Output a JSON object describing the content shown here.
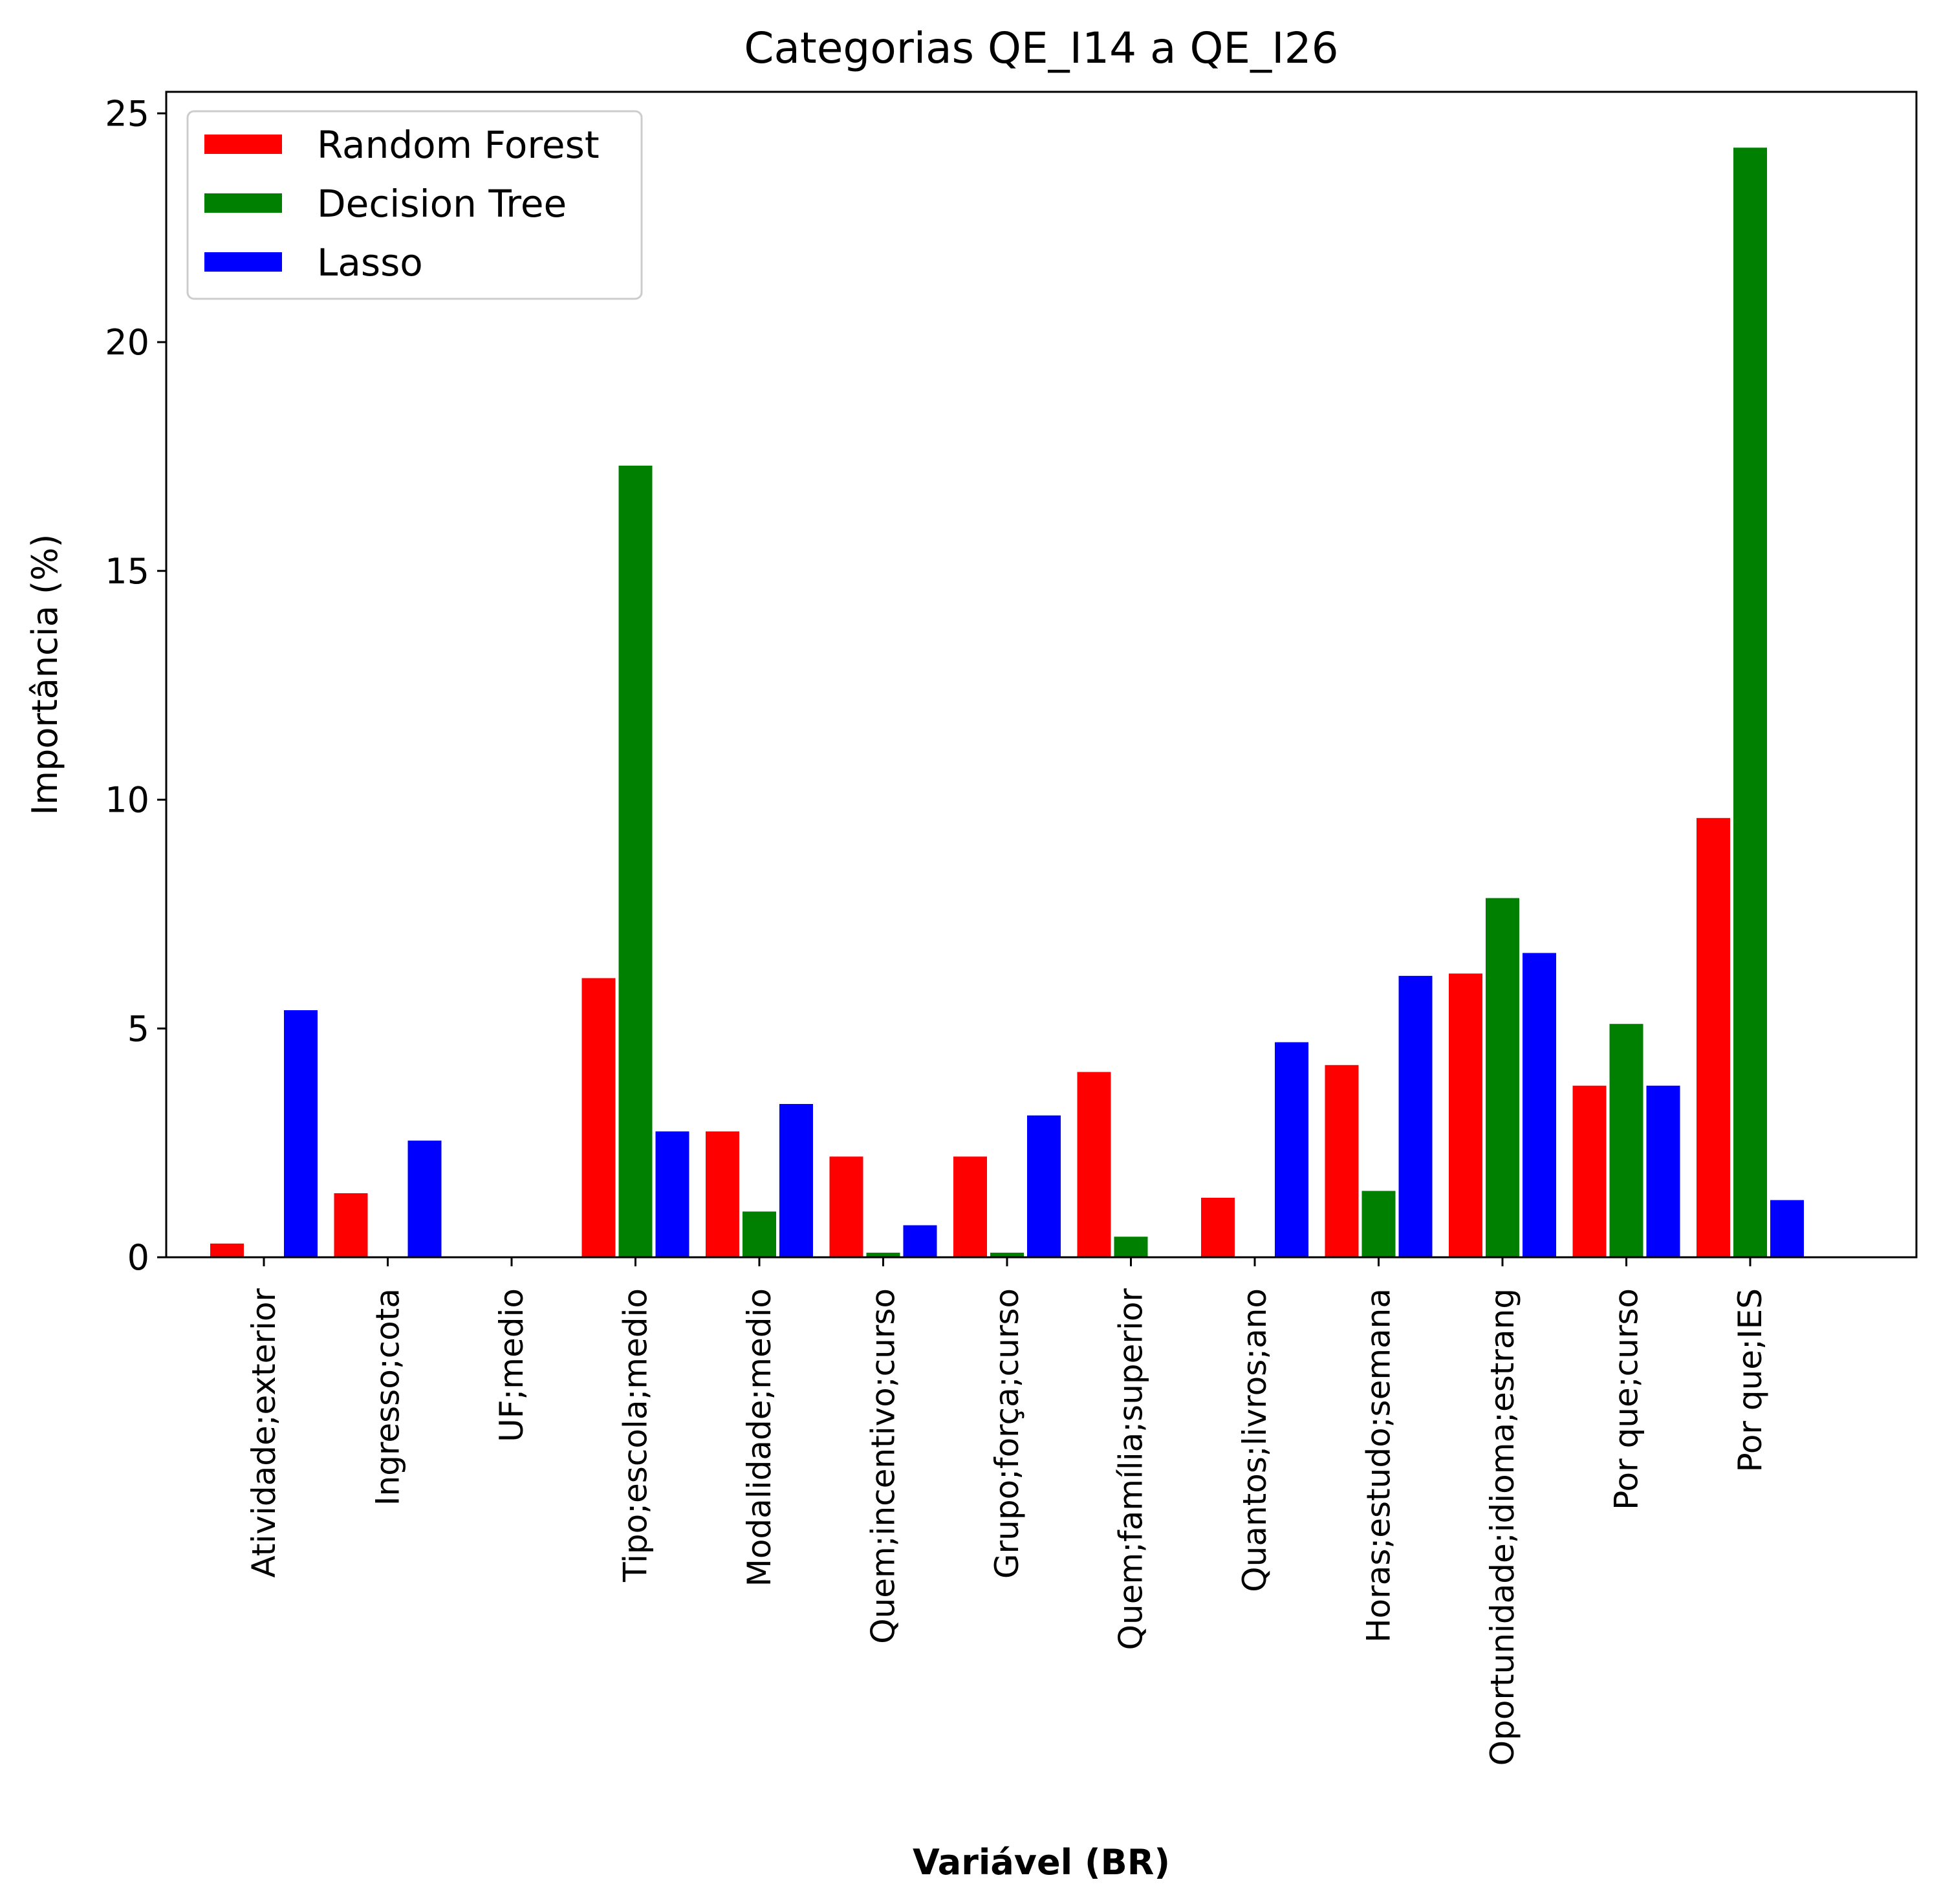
{
  "chart_data": {
    "type": "bar",
    "title": "Categorias QE_I14 a QE_I26",
    "xlabel": "Variável (BR)",
    "ylabel": "Importância (%)",
    "ylim": [
      0,
      25.6
    ],
    "yticks": [
      0,
      5,
      10,
      15,
      20,
      25
    ],
    "grid": false,
    "legend_position": "top-left",
    "categories": [
      "Atividade;exterior",
      "Ingresso;cota",
      "UF;medio",
      "Tipo;escola;medio",
      "Modalidade;medio",
      "Quem;incentivo;curso",
      "Grupo;força;curso",
      "Quem;família;superior",
      "Quantos;livros;ano",
      "Horas;estudo;semana",
      "Oportunidade;idioma;estrang",
      "Por que;curso",
      "Por que;IES"
    ],
    "series": [
      {
        "name": "Random Forest",
        "color": "#ff0000",
        "values": [
          0.3,
          1.4,
          0,
          6.1,
          2.75,
          2.2,
          2.2,
          4.05,
          1.3,
          4.2,
          6.2,
          3.75,
          9.6
        ]
      },
      {
        "name": "Decision Tree",
        "color": "#008000",
        "values": [
          0,
          0,
          0,
          17.3,
          1.0,
          0.1,
          0.1,
          0.45,
          0,
          1.45,
          7.85,
          5.1,
          24.25
        ]
      },
      {
        "name": "Lasso",
        "color": "#0000ff",
        "values": [
          5.4,
          2.55,
          0,
          2.75,
          3.35,
          0.7,
          3.1,
          0,
          4.7,
          6.15,
          6.65,
          3.75,
          1.25
        ]
      }
    ]
  }
}
